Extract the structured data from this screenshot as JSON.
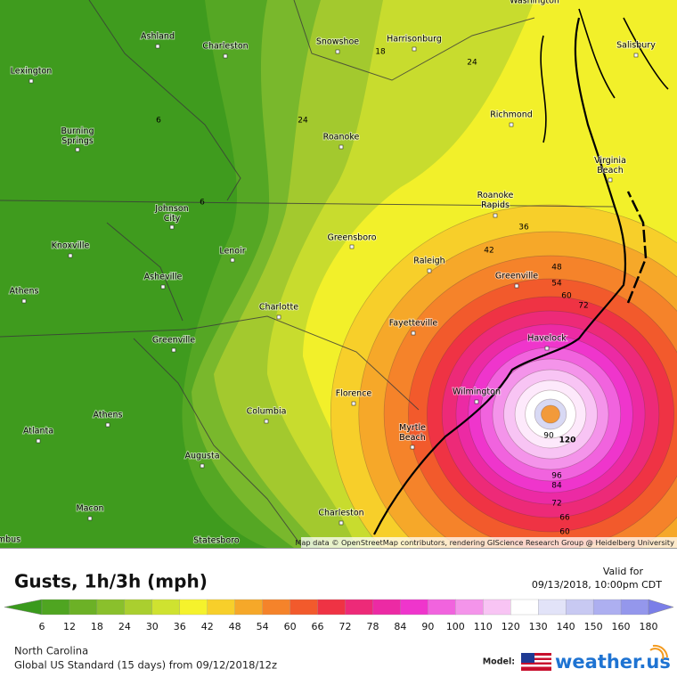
{
  "map": {
    "cities": [
      "Ashland",
      "Charleston",
      "Snowshoe",
      "Harrisonburg",
      "Washington",
      "Salisbury",
      "Lexington",
      "Burning Springs",
      "Richmond",
      "Roanoke",
      "Virginia Beach",
      "Johnson City",
      "Roanoke Rapids",
      "Knoxville",
      "Greensboro",
      "Lenoir",
      "Raleigh",
      "Greenville",
      "Asheville",
      "Athens",
      "Charlotte",
      "Fayetteville",
      "Havelock",
      "Greenville",
      "Wilmington",
      "Florence",
      "Athens",
      "Columbia",
      "Myrtle Beach",
      "Atlanta",
      "Augusta",
      "Macon",
      "Charleston",
      "Statesboro",
      "mbus"
    ],
    "contour_labels": [
      18,
      24,
      6,
      24,
      6,
      36,
      42,
      48,
      54,
      60,
      72,
      90,
      120,
      96,
      84,
      72,
      66,
      60
    ],
    "attribution": "Map data © OpenStreetMap contributors, rendering GIScience Research Group @ Heidelberg University"
  },
  "legend": {
    "title": "Gusts, 1h/3h (mph)",
    "values": [
      6,
      12,
      18,
      24,
      30,
      36,
      42,
      48,
      54,
      60,
      66,
      72,
      78,
      84,
      90,
      100,
      110,
      120,
      130,
      140,
      150,
      160,
      180
    ],
    "colors": [
      "#3a9a1c",
      "#4fa521",
      "#6cb126",
      "#8ac02c",
      "#aacf2f",
      "#cfe230",
      "#f5f22c",
      "#f7cf2a",
      "#f6a829",
      "#f5832a",
      "#f25a2c",
      "#ef3344",
      "#ed2a78",
      "#ec2aa4",
      "#ef35cc",
      "#f163de",
      "#f494ea",
      "#f8c4f4",
      "#ffffff",
      "#e2e3f8",
      "#c8c9f2",
      "#adaff0",
      "#9497ec",
      "#7a7ee8"
    ]
  },
  "valid": {
    "label": "Valid for",
    "time": "09/13/2018, 10:00pm CDT"
  },
  "footer": {
    "region": "North Carolina",
    "model_run": "Global US Standard (15 days) from 09/12/2018/12z",
    "model_label": "Model:",
    "brand": "weather.us"
  }
}
